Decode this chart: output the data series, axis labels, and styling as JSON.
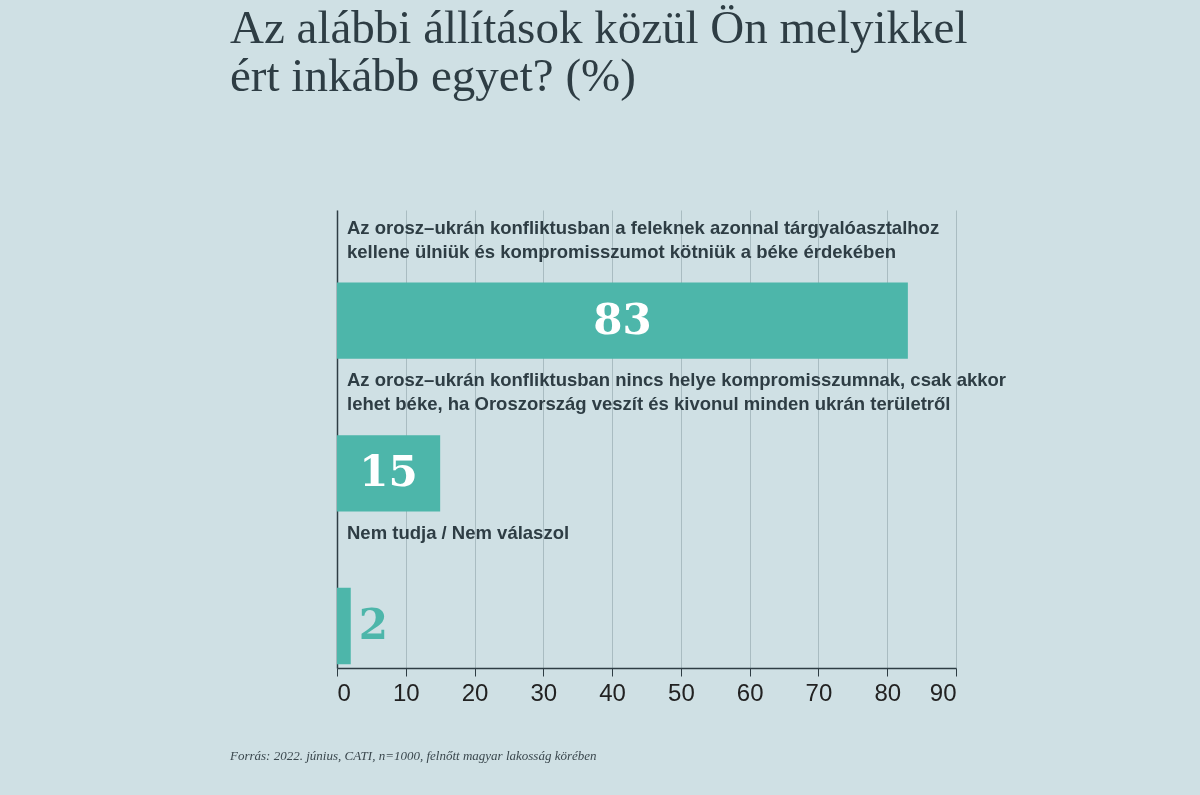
{
  "chart_data": {
    "type": "bar",
    "orientation": "horizontal",
    "title": "Az alábbi állítások közül Ön melyikkel ért inkább egyet? (%)",
    "categories": [
      "Az orosz–ukrán konfliktusban a feleknek azonnal tárgyalóasztalhoz kellene ülniük és kompromisszumot kötniük a béke érdekében",
      "Az orosz–ukrán konfliktusban nincs helye kompromisszumnak, csak akkor lehet béke, ha Oroszország veszít és kivonul minden ukrán területről",
      "Nem tudja / Nem válaszol"
    ],
    "values": [
      83,
      15,
      2
    ],
    "color": "#4db6aa",
    "data_labels": true,
    "xlim": [
      0,
      90
    ],
    "xticks": [
      0,
      10,
      20,
      30,
      40,
      50,
      60,
      70,
      80,
      90
    ],
    "grid": "x",
    "annotations": [
      "Forrás: 2022. június, CATI, n=1000, felnőtt magyar lakosság körében"
    ]
  }
}
